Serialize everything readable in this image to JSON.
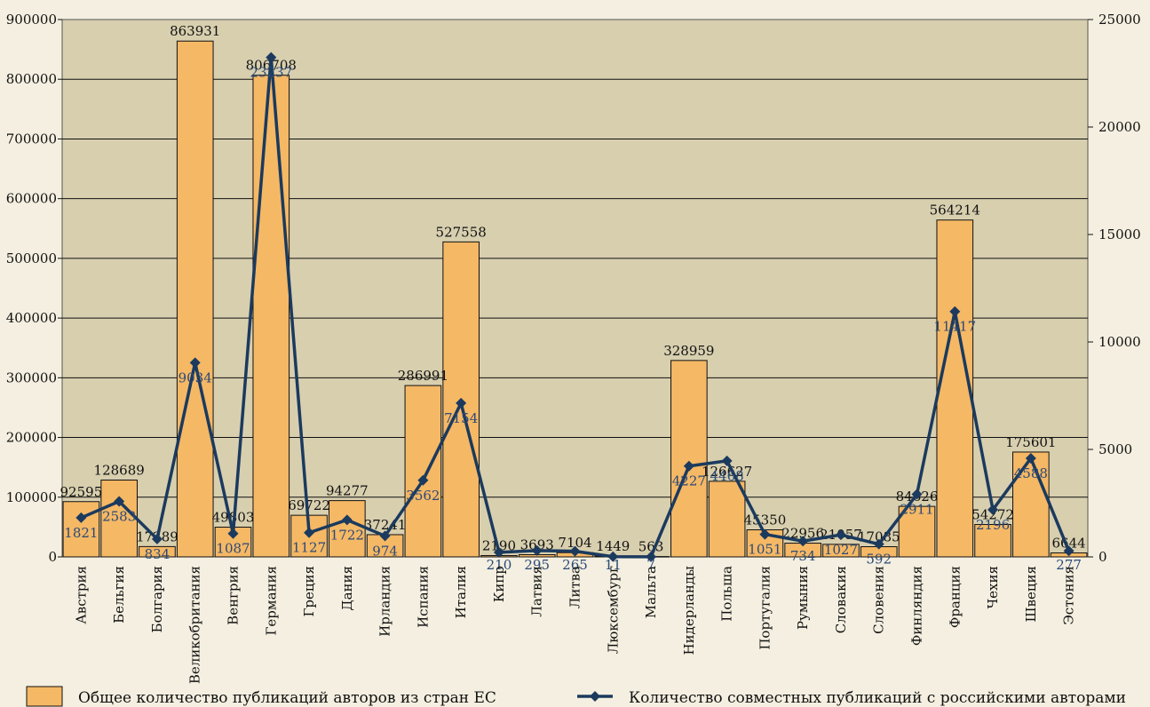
{
  "chart_data": {
    "type": "bar",
    "categories": [
      "Австрия",
      "Бельгия",
      "Болгария",
      "Великобритания",
      "Венгрия",
      "Германия",
      "Греция",
      "Дания",
      "Ирландия",
      "Испания",
      "Италия",
      "Кипр",
      "Латвия",
      "Литва",
      "Люксембург",
      "Мальта",
      "Нидерланды",
      "Польша",
      "Португалия",
      "Румыния",
      "Словакия",
      "Словения",
      "Финляндия",
      "Франция",
      "Чехия",
      "Швеция",
      "Эстония"
    ],
    "series": [
      {
        "name": "Общее количество публикаций авторов из стран ЕС",
        "type": "bar",
        "axis": "left",
        "color": "#f5b865",
        "values": [
          92595,
          128689,
          17289,
          863931,
          49803,
          806708,
          69722,
          94277,
          37241,
          286991,
          527558,
          2190,
          3693,
          7104,
          1449,
          563,
          328959,
          126627,
          45350,
          22956,
          21057,
          17085,
          84626,
          564214,
          54272,
          175601,
          6644
        ],
        "labels": [
          "92595",
          "128689",
          "17289",
          "863931",
          "49803",
          "806708",
          "69722",
          "94277",
          "37241",
          "286991",
          "527558",
          "2190",
          "3693",
          "7104",
          "1449",
          "563",
          "328959",
          "126627",
          "45350",
          "22956",
          "21057",
          "17085",
          "84626",
          "564214",
          "54272",
          "175601",
          "6644"
        ]
      },
      {
        "name": "Количество совместных публикаций с российскими авторами",
        "type": "line",
        "axis": "right",
        "color": "#1b3a5e",
        "values": [
          1821,
          2583,
          834,
          9034,
          1087,
          23237,
          1127,
          1722,
          974,
          3562,
          7154,
          210,
          295,
          265,
          11,
          7,
          4227,
          4468,
          1051,
          734,
          1027,
          592,
          2911,
          11417,
          2196,
          4588,
          277
        ],
        "labels": [
          "1821",
          "2583",
          "834",
          "9034",
          "1087",
          "23237",
          "1127",
          "1722",
          "974",
          "3562",
          "7154",
          "210",
          "295",
          "265",
          "11",
          "7",
          "4227",
          "4468",
          "1051",
          "734",
          "1027",
          "592",
          "2911",
          "11417",
          "2196",
          "4588",
          "277"
        ]
      }
    ],
    "ylim_left": [
      0,
      900000
    ],
    "yticks_left": [
      "0",
      "100000",
      "200000",
      "300000",
      "400000",
      "500000",
      "600000",
      "700000",
      "800000",
      "900000"
    ],
    "ylim_right": [
      0,
      25000
    ],
    "yticks_right": [
      "0",
      "5000",
      "10000",
      "15000",
      "20000",
      "25000"
    ],
    "grid": true,
    "plot_background": "#d8cfaf",
    "legend_position": "bottom"
  }
}
